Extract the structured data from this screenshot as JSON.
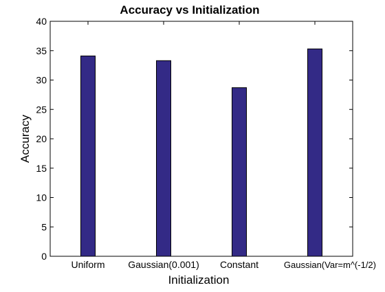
{
  "chart_data": {
    "type": "bar",
    "title": "Accuracy vs Initialization",
    "xlabel": "Initialization",
    "ylabel": "Accuracy",
    "categories": [
      "Uniform",
      "Gaussian(0.001)",
      "Constant",
      "Gaussian(Var=m^(-1/2)"
    ],
    "values": [
      34.1,
      33.3,
      28.7,
      35.3
    ],
    "ylim": [
      0,
      40
    ],
    "yticks": [
      0,
      5,
      10,
      15,
      20,
      25,
      30,
      35,
      40
    ],
    "grid": false,
    "legend": "none",
    "colors": {
      "bar_fill": "#332a86",
      "bar_stroke": "#000000",
      "axis": "#000000",
      "text": "#000000",
      "background": "#ffffff"
    }
  }
}
